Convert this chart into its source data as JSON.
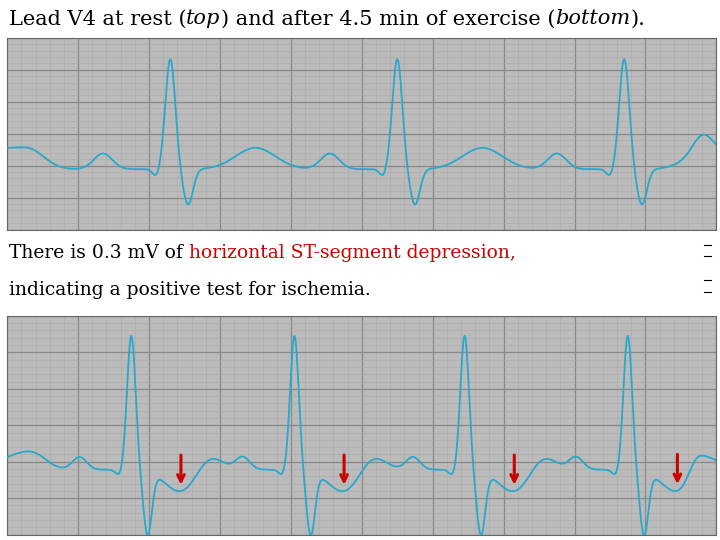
{
  "title_parts": [
    {
      "text": "Lead V4 at rest (",
      "style": "normal"
    },
    {
      "text": "top",
      "style": "italic"
    },
    {
      "text": ") and after 4.5 min of exercise (",
      "style": "normal"
    },
    {
      "text": "bottom",
      "style": "italic"
    },
    {
      "text": ").",
      "style": "normal"
    }
  ],
  "annotation_black1": "There is 0.3 mV of ",
  "annotation_red": "horizontal ST-segment depression,",
  "annotation_black2": "indicating a positive test for ischemia.",
  "bg_color": "#bbbbbb",
  "grid_major_color": "#888888",
  "grid_minor_color": "#aaaaaa",
  "ecg_color": "#29a8cc",
  "arrow_color": "#cc0000",
  "text_color": "#000000",
  "red_text_color": "#cc0000",
  "title_fontsize": 15,
  "annot_fontsize": 13.5
}
